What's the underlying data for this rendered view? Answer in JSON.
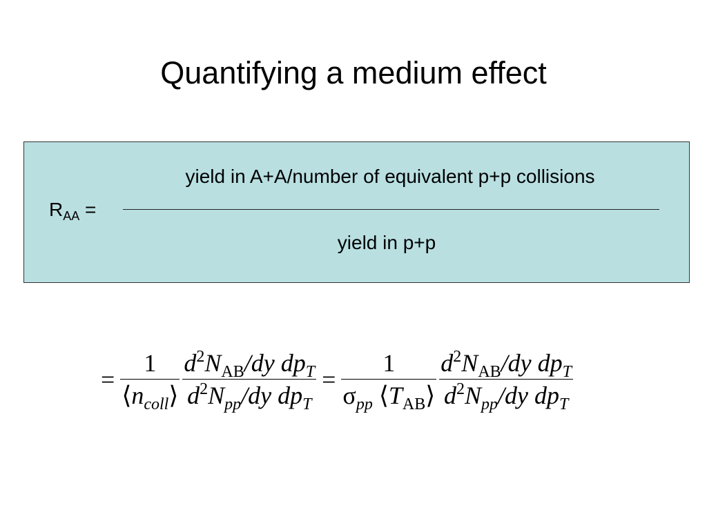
{
  "title": "Quantifying a medium effect",
  "box": {
    "symbol": "R",
    "subscript": "AA",
    "equals": "=",
    "numerator": "yield in A+A/number of equivalent p+p collisions",
    "denominator": "yield in p+p"
  },
  "formula": [
    {
      "op": "="
    },
    {
      "num": [
        {
          "r": "1"
        }
      ],
      "den": [
        {
          "r": "⟨"
        },
        {
          "t": "n"
        },
        {
          "sub": "coll"
        },
        {
          "r": "⟩"
        }
      ]
    },
    {
      "num": [
        {
          "t": "d"
        },
        {
          "rsup": "2"
        },
        {
          "t": "N"
        },
        {
          "rsub": "AB"
        },
        {
          "t": "/dy dp"
        },
        {
          "sub": "T"
        }
      ],
      "den": [
        {
          "t": "d"
        },
        {
          "rsup": "2"
        },
        {
          "t": "N"
        },
        {
          "sub": "pp"
        },
        {
          "t": "/dy dp"
        },
        {
          "sub": "T"
        }
      ]
    },
    {
      "op": "="
    },
    {
      "num": [
        {
          "r": "1"
        }
      ],
      "den": [
        {
          "r": "σ"
        },
        {
          "sub": "pp"
        },
        {
          "r": " ⟨"
        },
        {
          "t": "T"
        },
        {
          "rsub": "AB"
        },
        {
          "r": "⟩"
        }
      ]
    },
    {
      "num": [
        {
          "t": "d"
        },
        {
          "rsup": "2"
        },
        {
          "t": "N"
        },
        {
          "rsub": "AB"
        },
        {
          "t": "/dy dp"
        },
        {
          "sub": "T"
        }
      ],
      "den": [
        {
          "t": "d"
        },
        {
          "rsup": "2"
        },
        {
          "t": "N"
        },
        {
          "sub": "pp"
        },
        {
          "t": "/dy dp"
        },
        {
          "sub": "T"
        }
      ]
    }
  ]
}
